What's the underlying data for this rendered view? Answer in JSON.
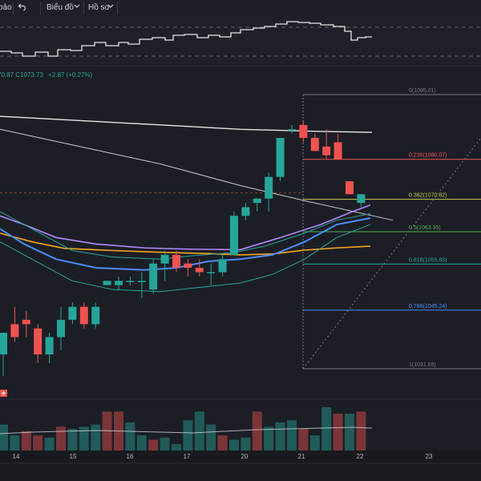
{
  "toolbar": {
    "left_label": "bảo",
    "chart_menu": "Biểu đồ",
    "profile_menu": "Hồ sơ",
    "undo_icon": "undo-icon",
    "chevron_icon": "chevron-down-icon"
  },
  "legend": {
    "ohlc_fragment": "70.87  C1073.73",
    "change": "+2.87 (+0.27%)",
    "change_color": "#26a69a"
  },
  "colors": {
    "bull": "#26a69a",
    "bear": "#ef5350",
    "ma_purple": "#b388ff",
    "ma_orange": "#f5a623",
    "ma_blue": "#4a8df8",
    "ma_teal": "#26a69a",
    "fib_red": "#ef5350",
    "fib_yellow": "#c6c94a",
    "fib_green": "#4caf50",
    "fib_teal": "#26a69a",
    "fib_blue": "#4a8df8",
    "fib_gray": "#787b86"
  },
  "fib_levels": [
    {
      "ratio": 0,
      "price": 1095.01,
      "label": "0(1095.01)",
      "color": "fib_gray"
    },
    {
      "ratio": 0.236,
      "price": 1080.07,
      "label": "0.236(1080.07)",
      "color": "fib_red"
    },
    {
      "ratio": 0.382,
      "price": 1070.82,
      "label": "0.382(1070.82)",
      "color": "fib_yellow"
    },
    {
      "ratio": 0.5,
      "price": 1063.35,
      "label": "0.5(1063.35)",
      "color": "fib_green"
    },
    {
      "ratio": 0.618,
      "price": 1055.88,
      "label": "0.618(1055.88)",
      "color": "fib_teal"
    },
    {
      "ratio": 0.786,
      "price": 1045.24,
      "label": "0.786(1045.24)",
      "color": "fib_blue"
    },
    {
      "ratio": 1,
      "price": 1031.69,
      "label": "1(1031.69)",
      "color": "fib_gray"
    }
  ],
  "time_axis": [
    "14",
    "15",
    "16",
    "17",
    "20",
    "21",
    "22",
    "23"
  ],
  "candles": [
    {
      "o": 1035,
      "h": 1040,
      "l": 1030,
      "c": 1040
    },
    {
      "o": 1042,
      "h": 1046,
      "l": 1038,
      "c": 1039
    },
    {
      "o": 1043,
      "h": 1045,
      "l": 1039,
      "c": 1042
    },
    {
      "o": 1041,
      "h": 1042,
      "l": 1033,
      "c": 1035
    },
    {
      "o": 1035,
      "h": 1040,
      "l": 1033,
      "c": 1039
    },
    {
      "o": 1039,
      "h": 1046,
      "l": 1036,
      "c": 1043
    },
    {
      "o": 1043,
      "h": 1047,
      "l": 1042,
      "c": 1046
    },
    {
      "o": 1046,
      "h": 1047,
      "l": 1041,
      "c": 1042
    },
    {
      "o": 1042,
      "h": 1047,
      "l": 1041,
      "c": 1046
    },
    {
      "o": 1051,
      "h": 1052,
      "l": 1051,
      "c": 1052
    },
    {
      "o": 1051,
      "h": 1053,
      "l": 1050,
      "c": 1052
    },
    {
      "o": 1052,
      "h": 1053,
      "l": 1051,
      "c": 1052
    },
    {
      "o": 1052,
      "h": 1054,
      "l": 1048,
      "c": 1052
    },
    {
      "o": 1050,
      "h": 1057,
      "l": 1049,
      "c": 1056
    },
    {
      "o": 1056,
      "h": 1059,
      "l": 1052,
      "c": 1058
    },
    {
      "o": 1058,
      "h": 1059,
      "l": 1054,
      "c": 1055
    },
    {
      "o": 1056,
      "h": 1057,
      "l": 1053,
      "c": 1055
    },
    {
      "o": 1055,
      "h": 1057,
      "l": 1053,
      "c": 1054
    },
    {
      "o": 1054,
      "h": 1056,
      "l": 1051,
      "c": 1054
    },
    {
      "o": 1054,
      "h": 1058,
      "l": 1053,
      "c": 1057
    },
    {
      "o": 1058,
      "h": 1068,
      "l": 1058,
      "c": 1067
    },
    {
      "o": 1067,
      "h": 1070,
      "l": 1066,
      "c": 1069
    },
    {
      "o": 1070,
      "h": 1071,
      "l": 1068,
      "c": 1071
    },
    {
      "o": 1071,
      "h": 1077,
      "l": 1068,
      "c": 1076
    },
    {
      "o": 1076,
      "h": 1085,
      "l": 1075,
      "c": 1085
    },
    {
      "o": 1087,
      "h": 1088,
      "l": 1086,
      "c": 1087
    },
    {
      "o": 1088,
      "h": 1089,
      "l": 1084,
      "c": 1085
    },
    {
      "o": 1085,
      "h": 1086,
      "l": 1082,
      "c": 1082
    },
    {
      "o": 1083,
      "h": 1087,
      "l": 1080,
      "c": 1081
    },
    {
      "o": 1084,
      "h": 1086,
      "l": 1080,
      "c": 1080
    },
    {
      "o": 1075,
      "h": 1075,
      "l": 1072,
      "c": 1072
    },
    {
      "o": 1070,
      "h": 1072,
      "l": 1069,
      "c": 1072
    }
  ],
  "volume": [
    {
      "v": 0.6,
      "dir": "bull"
    },
    {
      "v": 0.35,
      "dir": "bull"
    },
    {
      "v": 0.45,
      "dir": "bear"
    },
    {
      "v": 0.35,
      "dir": "bear"
    },
    {
      "v": 0.3,
      "dir": "bull"
    },
    {
      "v": 0.55,
      "dir": "bear"
    },
    {
      "v": 0.5,
      "dir": "bull"
    },
    {
      "v": 0.55,
      "dir": "bull"
    },
    {
      "v": 0.6,
      "dir": "bull"
    },
    {
      "v": 0.9,
      "dir": "bear"
    },
    {
      "v": 0.9,
      "dir": "bear"
    },
    {
      "v": 0.65,
      "dir": "bull"
    },
    {
      "v": 0.35,
      "dir": "bull"
    },
    {
      "v": 0.25,
      "dir": "bear"
    },
    {
      "v": 0.3,
      "dir": "bull"
    },
    {
      "v": 0.15,
      "dir": "bull"
    },
    {
      "v": 0.7,
      "dir": "bull"
    },
    {
      "v": 0.9,
      "dir": "bull"
    },
    {
      "v": 0.6,
      "dir": "bull"
    },
    {
      "v": 0.35,
      "dir": "bear"
    },
    {
      "v": 0.25,
      "dir": "bull"
    },
    {
      "v": 0.3,
      "dir": "bull"
    },
    {
      "v": 0.9,
      "dir": "bear"
    },
    {
      "v": 0.55,
      "dir": "bull"
    },
    {
      "v": 0.65,
      "dir": "bull"
    },
    {
      "v": 0.7,
      "dir": "bull"
    },
    {
      "v": 0.5,
      "dir": "bear"
    },
    {
      "v": 0.35,
      "dir": "bull"
    },
    {
      "v": 1.0,
      "dir": "bull"
    },
    {
      "v": 0.85,
      "dir": "bear"
    },
    {
      "v": 0.85,
      "dir": "bull"
    },
    {
      "v": 0.9,
      "dir": "bear"
    }
  ]
}
